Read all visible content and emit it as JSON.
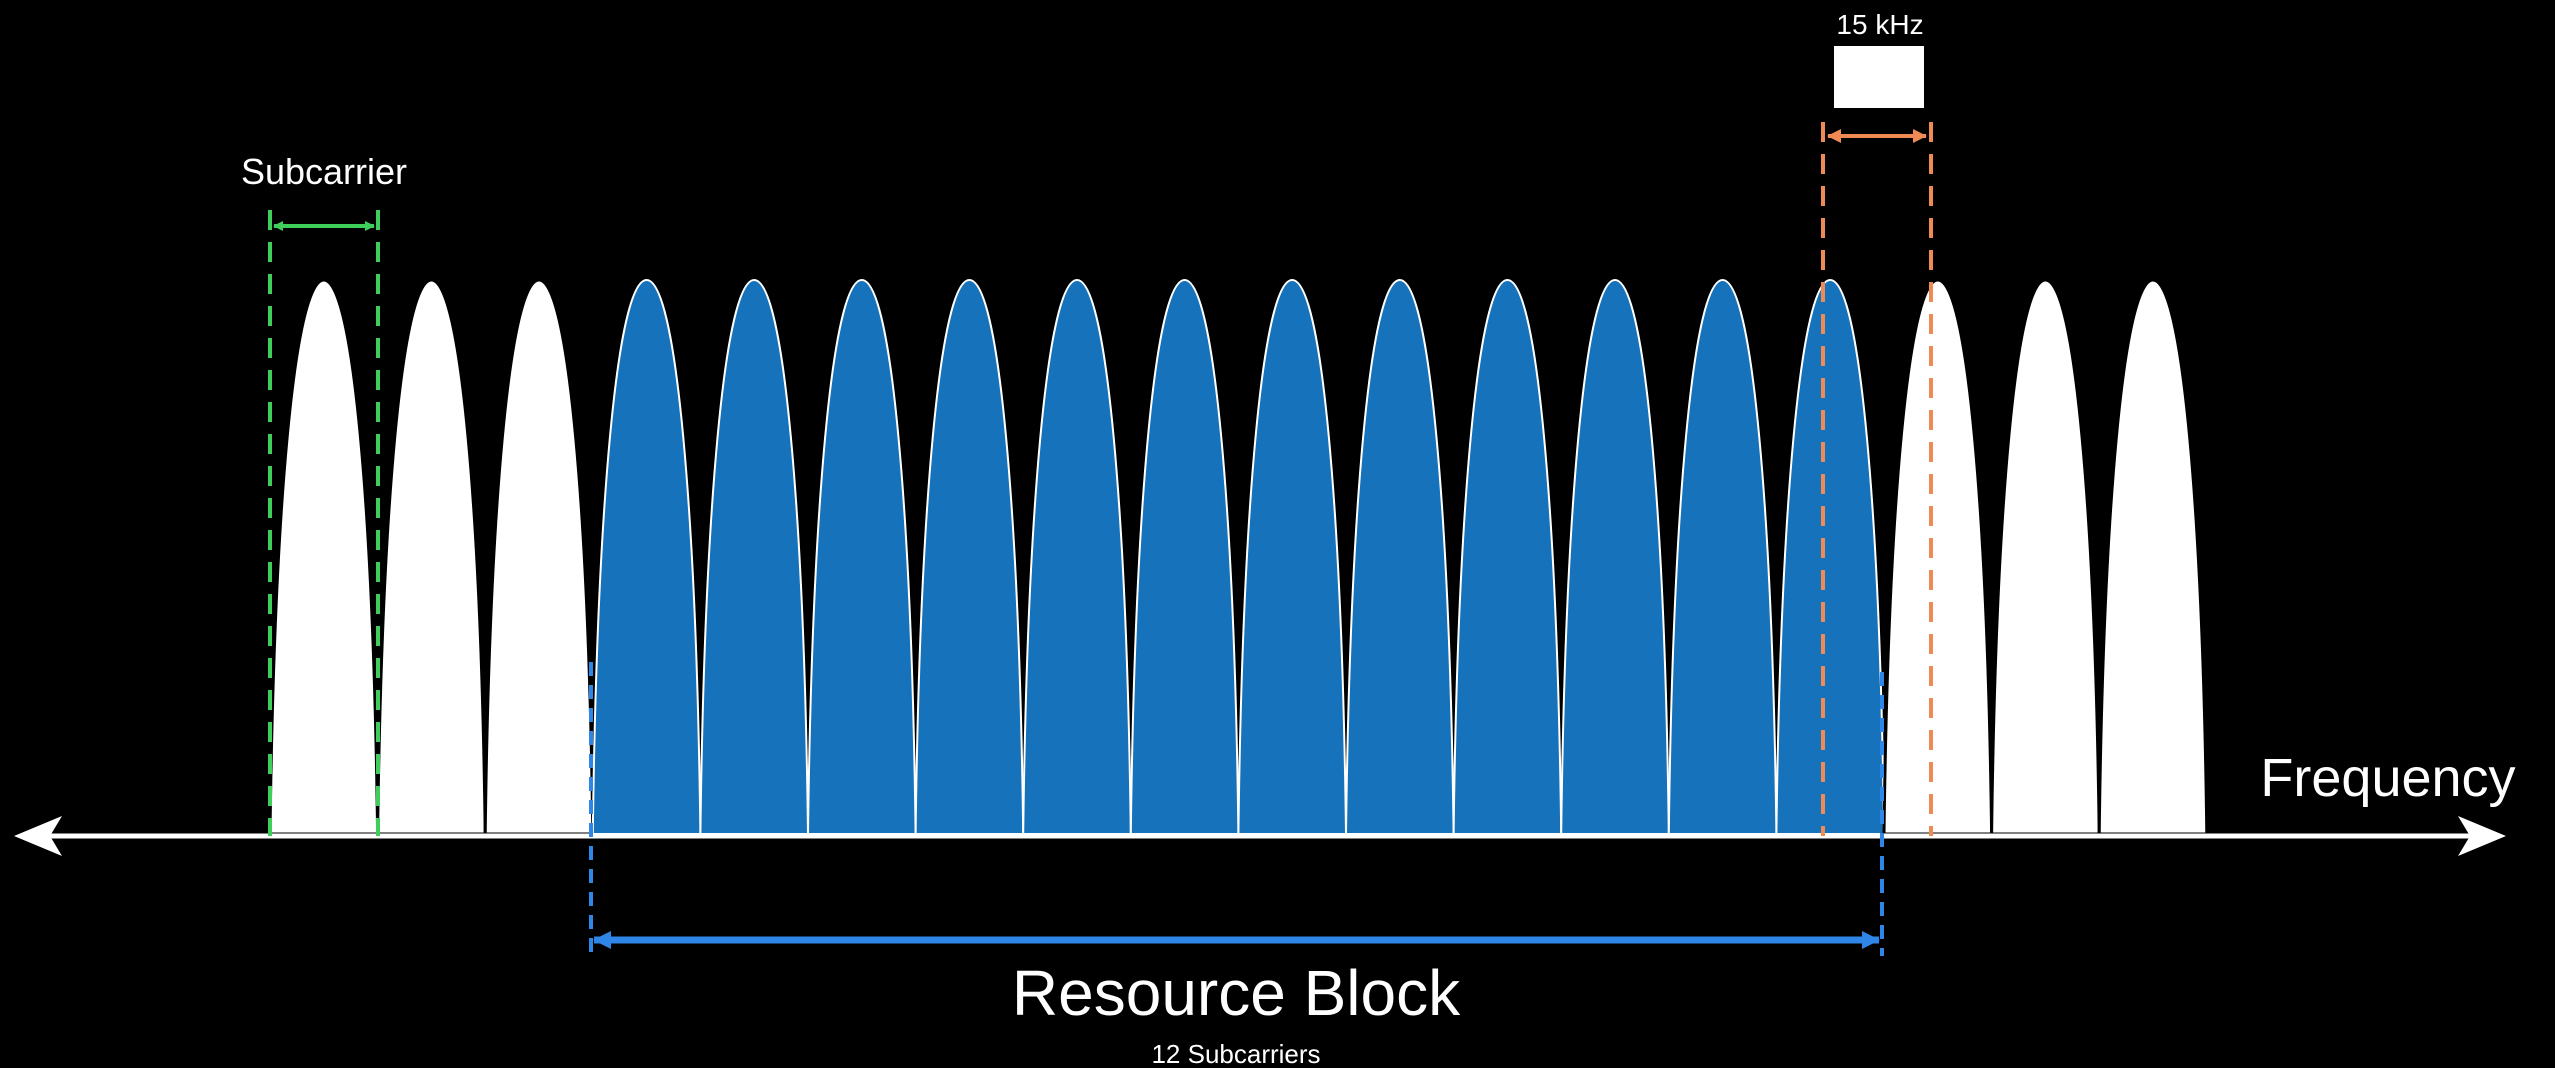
{
  "labels": {
    "subcarrier": "Subcarrier",
    "spacing": "15 kHz",
    "frequency": "Frequency",
    "resource_block": "Resource Block",
    "resource_block_sub": "12 Subcarriers"
  },
  "subcarriers": {
    "total": 18,
    "highlighted_start": 3,
    "highlighted_count": 12
  },
  "colors": {
    "background": "#000000",
    "idle_subcarrier": "#ffffff",
    "resource_block_fill": "#1572bb",
    "subcarrier_marker": "#3ecf5a",
    "spacing_marker": "#ef8a54",
    "resource_block_marker": "#2f86e6",
    "axis": "#ffffff"
  }
}
